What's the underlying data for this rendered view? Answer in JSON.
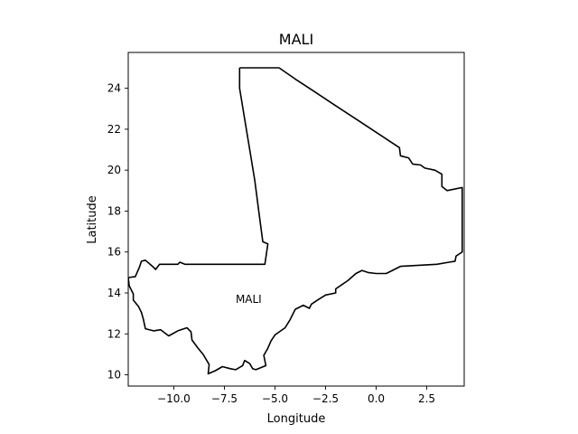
{
  "chart_data": {
    "type": "map",
    "title": "MALI",
    "xlabel": "Longitude",
    "ylabel": "Latitude",
    "xlim": [
      -12.25,
      4.35
    ],
    "ylim": [
      9.45,
      25.75
    ],
    "xticks": [
      -10.0,
      -7.5,
      -5.0,
      -2.5,
      0.0,
      2.5
    ],
    "xtick_labels": [
      "−10.0",
      "−7.5",
      "−5.0",
      "−2.5",
      "0.0",
      "2.5"
    ],
    "yticks": [
      10,
      12,
      14,
      16,
      18,
      20,
      22,
      24
    ],
    "ytick_labels": [
      "10",
      "12",
      "14",
      "16",
      "18",
      "20",
      "22",
      "24"
    ],
    "grid": false,
    "line_color": "#000000",
    "annotation": {
      "text": "MALI",
      "x": -6.3,
      "y": 13.7
    },
    "boundary": [
      [
        -6.75,
        25.0
      ],
      [
        -4.8,
        25.0
      ],
      [
        -4.0,
        24.45
      ],
      [
        -3.0,
        23.8
      ],
      [
        -2.0,
        23.15
      ],
      [
        -1.0,
        22.5
      ],
      [
        0.0,
        21.85
      ],
      [
        1.15,
        21.1
      ],
      [
        1.2,
        20.7
      ],
      [
        1.6,
        20.6
      ],
      [
        1.8,
        20.3
      ],
      [
        2.2,
        20.25
      ],
      [
        2.4,
        20.1
      ],
      [
        2.9,
        20.0
      ],
      [
        3.25,
        19.8
      ],
      [
        3.25,
        19.2
      ],
      [
        3.5,
        19.0
      ],
      [
        4.25,
        19.15
      ],
      [
        4.25,
        16.0
      ],
      [
        3.95,
        15.8
      ],
      [
        3.9,
        15.55
      ],
      [
        3.6,
        15.5
      ],
      [
        3.0,
        15.4
      ],
      [
        1.2,
        15.3
      ],
      [
        0.5,
        14.95
      ],
      [
        0.0,
        14.95
      ],
      [
        -0.4,
        15.0
      ],
      [
        -0.7,
        15.1
      ],
      [
        -1.0,
        14.95
      ],
      [
        -1.4,
        14.6
      ],
      [
        -2.0,
        14.2
      ],
      [
        -2.0,
        14.0
      ],
      [
        -2.5,
        13.9
      ],
      [
        -2.9,
        13.65
      ],
      [
        -3.2,
        13.45
      ],
      [
        -3.3,
        13.25
      ],
      [
        -3.6,
        13.4
      ],
      [
        -4.0,
        13.2
      ],
      [
        -4.25,
        12.7
      ],
      [
        -4.5,
        12.3
      ],
      [
        -5.0,
        11.95
      ],
      [
        -5.2,
        11.65
      ],
      [
        -5.35,
        11.3
      ],
      [
        -5.55,
        10.95
      ],
      [
        -5.45,
        10.45
      ],
      [
        -5.95,
        10.25
      ],
      [
        -6.1,
        10.3
      ],
      [
        -6.25,
        10.55
      ],
      [
        -6.5,
        10.7
      ],
      [
        -6.6,
        10.45
      ],
      [
        -6.95,
        10.25
      ],
      [
        -7.2,
        10.3
      ],
      [
        -7.6,
        10.4
      ],
      [
        -7.95,
        10.2
      ],
      [
        -8.3,
        10.05
      ],
      [
        -8.25,
        10.5
      ],
      [
        -8.55,
        11.0
      ],
      [
        -8.8,
        11.3
      ],
      [
        -8.95,
        11.5
      ],
      [
        -9.1,
        11.7
      ],
      [
        -9.15,
        12.1
      ],
      [
        -9.35,
        12.3
      ],
      [
        -9.8,
        12.15
      ],
      [
        -10.25,
        11.9
      ],
      [
        -10.65,
        12.2
      ],
      [
        -11.0,
        12.15
      ],
      [
        -11.4,
        12.25
      ],
      [
        -11.5,
        12.7
      ],
      [
        -11.6,
        13.05
      ],
      [
        -11.75,
        13.35
      ],
      [
        -12.0,
        13.65
      ],
      [
        -12.0,
        13.95
      ],
      [
        -12.2,
        14.35
      ],
      [
        -12.25,
        14.75
      ],
      [
        -11.9,
        14.8
      ],
      [
        -11.7,
        15.25
      ],
      [
        -11.6,
        15.55
      ],
      [
        -11.4,
        15.6
      ],
      [
        -11.05,
        15.3
      ],
      [
        -10.9,
        15.15
      ],
      [
        -10.7,
        15.4
      ],
      [
        -10.1,
        15.4
      ],
      [
        -9.8,
        15.4
      ],
      [
        -9.7,
        15.5
      ],
      [
        -9.45,
        15.4
      ],
      [
        -5.5,
        15.4
      ],
      [
        -5.35,
        16.4
      ],
      [
        -5.6,
        16.5
      ],
      [
        -5.8,
        18.0
      ],
      [
        -6.0,
        19.5
      ],
      [
        -6.25,
        21.0
      ],
      [
        -6.5,
        22.5
      ],
      [
        -6.75,
        24.0
      ],
      [
        -6.75,
        25.0
      ]
    ]
  }
}
